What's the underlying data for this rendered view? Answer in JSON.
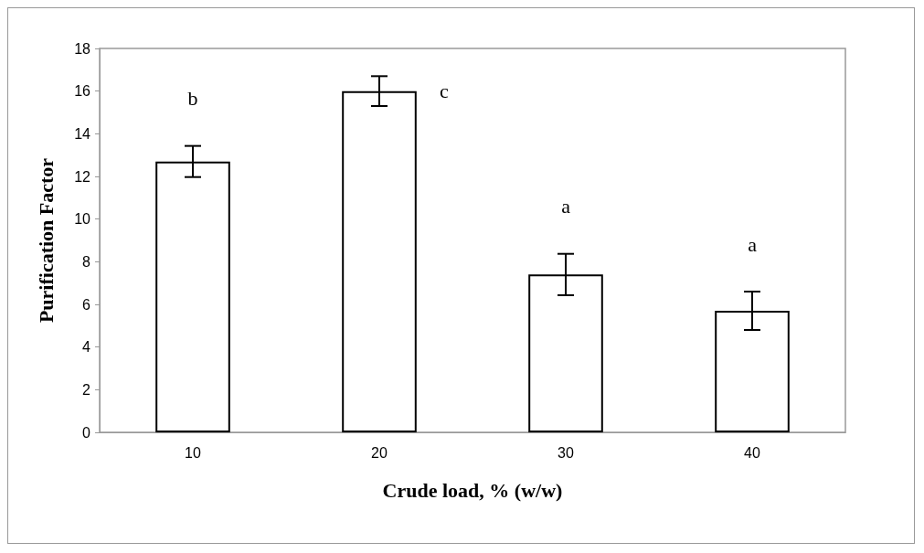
{
  "chart_data": {
    "type": "bar",
    "xlabel": "Crude load, % (w/w)",
    "ylabel": "Purification Factor",
    "categories": [
      "10",
      "20",
      "30",
      "40"
    ],
    "values": [
      12.7,
      16.0,
      7.4,
      5.7
    ],
    "errors": [
      0.73,
      0.7,
      0.97,
      0.9
    ],
    "color": "#ffffff",
    "ylim": [
      0,
      18
    ],
    "yticks": [
      0,
      2,
      4,
      6,
      8,
      10,
      12,
      14,
      16,
      18
    ],
    "grid": false,
    "annotations": [
      "b",
      {
        "text": "c",
        "x": "20",
        "y": 16.0
      },
      "a",
      "a"
    ]
  }
}
